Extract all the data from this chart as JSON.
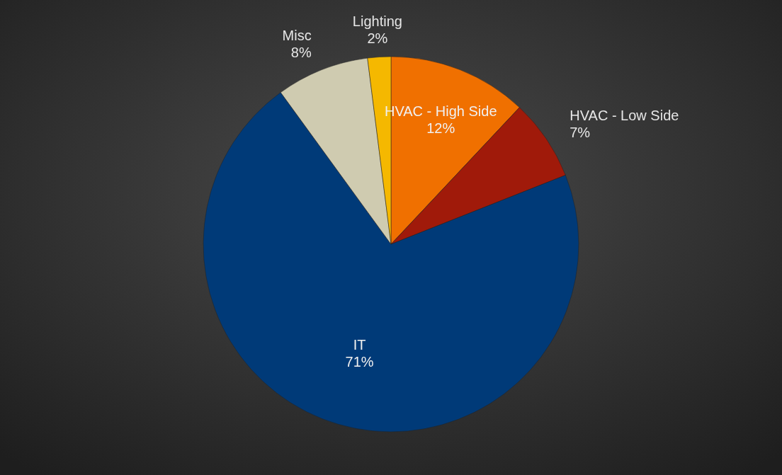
{
  "chart_data": {
    "type": "pie",
    "categories": [
      "HVAC - High Side",
      "HVAC - Low Side",
      "IT",
      "Misc",
      "Lighting"
    ],
    "values": [
      12,
      7,
      71,
      8,
      2
    ],
    "value_labels": [
      "12%",
      "7%",
      "71%",
      "8%",
      "2%"
    ],
    "colors": [
      "#f07000",
      "#a01a0a",
      "#003a78",
      "#cfcbb0",
      "#f5b800"
    ]
  }
}
